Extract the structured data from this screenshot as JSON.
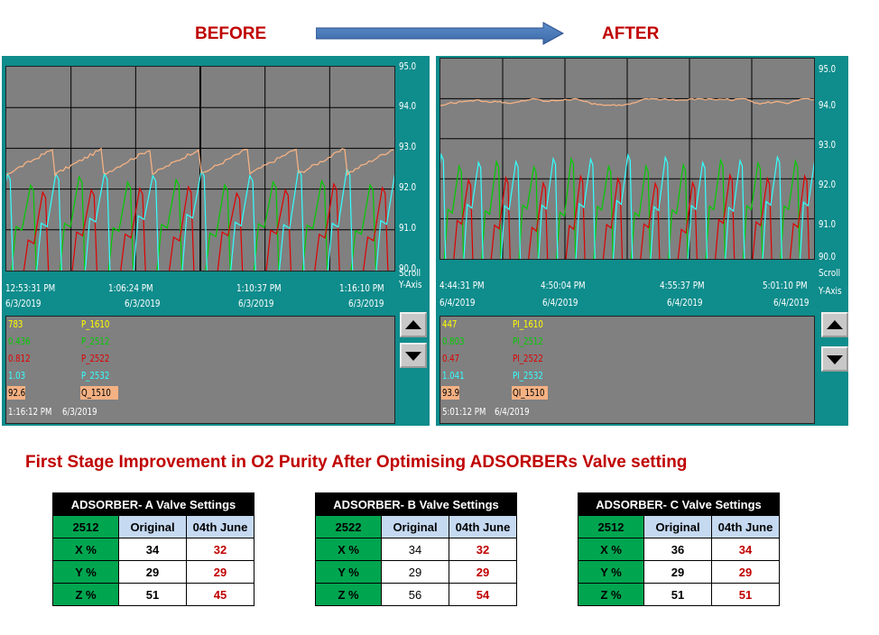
{
  "header": {
    "before": "BEFORE",
    "after": "AFTER"
  },
  "colors": {
    "o2": "#f4b183",
    "green": "#00cc00",
    "red": "#e00000",
    "cyan": "#33ffff",
    "yellow": "#ffff00"
  },
  "chart_data": [
    {
      "type": "line",
      "name": "before-trend",
      "y_ticks": [
        "95.0",
        "94.0",
        "93.0",
        "92.0",
        "91.0",
        "90.0"
      ],
      "ylim": [
        90,
        95
      ],
      "scroll_label": "Scroll",
      "yaxis_label": "Y-Axis",
      "time_ticks": [
        {
          "time": "12:53:31 PM",
          "date": "6/3/2019"
        },
        {
          "time": "1:06:24 PM",
          "date": "6/3/2019"
        },
        {
          "time": "1:10:37 PM",
          "date": "6/3/2019"
        },
        {
          "time": "1:16:10 PM",
          "date": "6/3/2019"
        }
      ],
      "series": [
        {
          "name": "Q_1510",
          "color": "#f4b183",
          "approx_range": [
            92.2,
            93.0
          ]
        },
        {
          "name": "P_2512",
          "color": "#00cc00"
        },
        {
          "name": "P_2522",
          "color": "#e00000"
        },
        {
          "name": "P_2532",
          "color": "#33ffff"
        }
      ],
      "legend": [
        {
          "value": "783",
          "tag": "P_1610",
          "value_color": "#ffff00",
          "tag_color": "#ffff00"
        },
        {
          "value": "0.436",
          "tag": "P_2512",
          "value_color": "#00cc00",
          "tag_color": "#00cc00"
        },
        {
          "value": "0.812",
          "tag": "P_2522",
          "value_color": "#e00000",
          "tag_color": "#e00000"
        },
        {
          "value": "1.03",
          "tag": "P_2532",
          "value_color": "#33ffff",
          "tag_color": "#33ffff"
        },
        {
          "value": "92.6",
          "tag": "Q_1510",
          "value_color": "#000000",
          "tag_color": "#000000",
          "highlight": "#f4b183"
        }
      ],
      "footer": {
        "time": "1:16:12 PM",
        "date": "6/3/2019"
      }
    },
    {
      "type": "line",
      "name": "after-trend",
      "y_ticks": [
        "95.0",
        "94.0",
        "93.0",
        "92.0",
        "91.0",
        "90.0"
      ],
      "ylim": [
        90,
        95
      ],
      "scroll_label": "Scroll",
      "yaxis_label": "Y-Axis",
      "time_ticks": [
        {
          "time": "4:44:31 PM",
          "date": "6/4/2019"
        },
        {
          "time": "4:50:04 PM",
          "date": "6/4/2019"
        },
        {
          "time": "4:55:37 PM",
          "date": "6/4/2019"
        },
        {
          "time": "5:01:10 PM",
          "date": "6/4/2019"
        }
      ],
      "series": [
        {
          "name": "QI_1510",
          "color": "#f4b183",
          "approx_range": [
            93.6,
            94.0
          ]
        },
        {
          "name": "PI_2512",
          "color": "#00cc00"
        },
        {
          "name": "PI_2522",
          "color": "#e00000"
        },
        {
          "name": "PI_2532",
          "color": "#33ffff"
        }
      ],
      "legend": [
        {
          "value": "447",
          "tag": "PI_1610",
          "value_color": "#ffff00",
          "tag_color": "#ffff00"
        },
        {
          "value": "0.803",
          "tag": "PI_2512",
          "value_color": "#00cc00",
          "tag_color": "#00cc00"
        },
        {
          "value": "0.47",
          "tag": "PI_2522",
          "value_color": "#e00000",
          "tag_color": "#e00000"
        },
        {
          "value": "1.041",
          "tag": "PI_2532",
          "value_color": "#33ffff",
          "tag_color": "#33ffff"
        },
        {
          "value": "93.9",
          "tag": "QI_1510",
          "value_color": "#000000",
          "tag_color": "#000000",
          "highlight": "#f4b183"
        }
      ],
      "footer": {
        "time": "5:01:12 PM",
        "date": "6/4/2019"
      }
    }
  ],
  "subtitle": "First Stage Improvement in O2 Purity After Optimising ADSORBERs Valve setting",
  "tables": [
    {
      "title": "ADSORBER- A   Valve Settings",
      "tag": "2512",
      "col1": "Original",
      "col2": "04th June",
      "rows": [
        {
          "label": "X %",
          "orig": "34",
          "june": "32"
        },
        {
          "label": "Y %",
          "orig": "29",
          "june": "29"
        },
        {
          "label": "Z %",
          "orig": "51",
          "june": "45"
        }
      ]
    },
    {
      "title": "ADSORBER- B   Valve Settings",
      "tag": "2522",
      "col1": "Original",
      "col2": "04th June",
      "rows": [
        {
          "label": "X %",
          "orig": "34",
          "june": "32"
        },
        {
          "label": "Y %",
          "orig": "29",
          "june": "29"
        },
        {
          "label": "Z %",
          "orig": "56",
          "june": "54"
        }
      ]
    },
    {
      "title": "ADSORBER- C   Valve Settings",
      "tag": "2512",
      "col1": "Original",
      "col2": "04th June",
      "rows": [
        {
          "label": "X %",
          "orig": "36",
          "june": "34"
        },
        {
          "label": "Y %",
          "orig": "29",
          "june": "29"
        },
        {
          "label": "Z %",
          "orig": "51",
          "june": "51"
        }
      ]
    }
  ]
}
